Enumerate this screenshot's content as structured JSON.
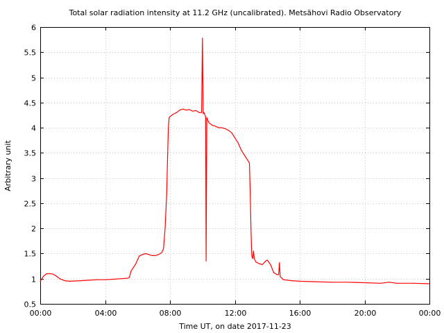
{
  "chart_data": {
    "type": "line",
    "title": "Total solar radiation intensity at 11.2 GHz (uncalibrated). Metsähovi Radio Observatory",
    "xlabel": "Time UT, on date 2017-11-23",
    "ylabel": "Arbitrary unit",
    "xlim": [
      0,
      24
    ],
    "ylim": [
      0.5,
      6
    ],
    "x_ticks": [
      0,
      4,
      8,
      12,
      16,
      20,
      24
    ],
    "x_tick_labels": [
      "00:00",
      "04:00",
      "08:00",
      "12:00",
      "16:00",
      "20:00",
      "00:00"
    ],
    "y_ticks": [
      0.5,
      1,
      1.5,
      2,
      2.5,
      3,
      3.5,
      4,
      4.5,
      5,
      5.5,
      6
    ],
    "y_tick_labels": [
      "0.5",
      "1",
      "1.5",
      "2",
      "2.5",
      "3",
      "3.5",
      "4",
      "4.5",
      "5",
      "5.5",
      "6"
    ],
    "grid": true,
    "line_color": "#ff0000",
    "series": [
      {
        "x": [
          0,
          0.2,
          0.4,
          0.6,
          0.8,
          1.0,
          1.2,
          1.5,
          1.8,
          2.5,
          3.0,
          3.5,
          4.0,
          4.5,
          5.0,
          5.4,
          5.5,
          5.6,
          5.7,
          5.9,
          6.1,
          6.3,
          6.5,
          6.7,
          6.9,
          7.1,
          7.3,
          7.5,
          7.6,
          7.7,
          7.8,
          7.85,
          7.9,
          7.95,
          8.0,
          8.2,
          8.4,
          8.6,
          8.8,
          9.0,
          9.2,
          9.4,
          9.6,
          9.8,
          9.95,
          10.0,
          10.05,
          10.1,
          10.2,
          10.23,
          10.27,
          10.4,
          10.6,
          10.8,
          11.0,
          11.2,
          11.4,
          11.6,
          11.8,
          12.0,
          12.2,
          12.4,
          12.6,
          12.8,
          12.9,
          12.95,
          13.0,
          13.05,
          13.1,
          13.15,
          13.2,
          13.3,
          13.5,
          13.7,
          13.9,
          14.0,
          14.2,
          14.4,
          14.6,
          14.7,
          14.75,
          14.8,
          15.0,
          15.5,
          16.0,
          17.0,
          18.0,
          19.0,
          20.0,
          21.0,
          21.5,
          22.0,
          23.0,
          24.0
        ],
        "y": [
          0.95,
          1.05,
          1.1,
          1.1,
          1.09,
          1.05,
          1.0,
          0.96,
          0.95,
          0.96,
          0.97,
          0.98,
          0.98,
          0.99,
          1.0,
          1.01,
          1.03,
          1.15,
          1.2,
          1.3,
          1.45,
          1.48,
          1.5,
          1.48,
          1.46,
          1.46,
          1.48,
          1.52,
          1.6,
          2.0,
          2.7,
          3.4,
          4.0,
          4.2,
          4.22,
          4.27,
          4.3,
          4.35,
          4.37,
          4.35,
          4.36,
          4.33,
          4.34,
          4.3,
          4.3,
          5.78,
          4.28,
          4.3,
          4.22,
          1.35,
          4.2,
          4.1,
          4.05,
          4.03,
          4.0,
          4.0,
          3.98,
          3.95,
          3.9,
          3.8,
          3.7,
          3.55,
          3.45,
          3.35,
          3.3,
          2.7,
          1.9,
          1.45,
          1.4,
          1.55,
          1.4,
          1.33,
          1.3,
          1.28,
          1.35,
          1.37,
          1.28,
          1.12,
          1.08,
          1.08,
          1.32,
          1.04,
          0.98,
          0.96,
          0.95,
          0.94,
          0.93,
          0.93,
          0.92,
          0.91,
          0.93,
          0.91,
          0.91,
          0.9
        ]
      }
    ]
  }
}
